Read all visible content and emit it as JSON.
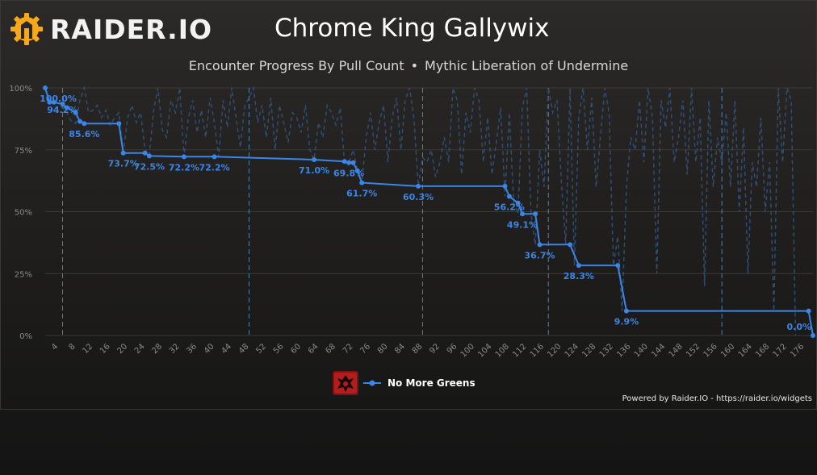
{
  "brand": {
    "name": "RAIDER.IO",
    "icon": "raiderio-gear-icon"
  },
  "header": {
    "title": "Chrome King Gallywix",
    "subtitle_left": "Encounter Progress By Pull Count",
    "subtitle_sep": "•",
    "subtitle_right": "Mythic Liberation of Undermine"
  },
  "legend": {
    "icon": "horde-guild-icon",
    "label": "No More Greens"
  },
  "footer": {
    "powered": "Powered by Raider.IO - https://raider.io/widgets"
  },
  "colors": {
    "best": "#3a86e8",
    "pull": "#2f4d73",
    "grid": "#3d3a36",
    "marker": "#5b9bd5"
  },
  "chart_data": {
    "type": "line",
    "xlabel": "",
    "ylabel": "",
    "xlim": [
      1,
      178
    ],
    "ylim": [
      0,
      100
    ],
    "y_ticks": [
      "0%",
      "25%",
      "50%",
      "75%",
      "100%"
    ],
    "x_ticks": [
      4,
      8,
      12,
      16,
      20,
      24,
      28,
      32,
      36,
      40,
      44,
      48,
      52,
      56,
      60,
      64,
      68,
      72,
      76,
      80,
      84,
      88,
      92,
      96,
      100,
      104,
      108,
      112,
      116,
      120,
      124,
      128,
      132,
      136,
      140,
      144,
      148,
      152,
      156,
      160,
      164,
      168,
      172,
      176
    ],
    "markers": [
      5,
      48,
      88,
      117,
      157
    ],
    "series": [
      {
        "name": "No More Greens",
        "kind": "best_progress",
        "points": [
          {
            "x": 1,
            "y": 100.0,
            "label": "100.0%"
          },
          {
            "x": 2,
            "y": 94.2,
            "label": "94.2%"
          },
          {
            "x": 3,
            "y": 94.2
          },
          {
            "x": 5,
            "y": 93.5
          },
          {
            "x": 6,
            "y": 92.0
          },
          {
            "x": 8,
            "y": 90.0
          },
          {
            "x": 9,
            "y": 86.5
          },
          {
            "x": 10,
            "y": 85.6,
            "label": "85.6%"
          },
          {
            "x": 18,
            "y": 85.6
          },
          {
            "x": 19,
            "y": 73.7,
            "label": "73.7%"
          },
          {
            "x": 24,
            "y": 73.7
          },
          {
            "x": 25,
            "y": 72.5,
            "label": "72.5%"
          },
          {
            "x": 33,
            "y": 72.2,
            "label": "72.2%"
          },
          {
            "x": 40,
            "y": 72.2,
            "label": "72.2%"
          },
          {
            "x": 63,
            "y": 71.0,
            "label": "71.0%"
          },
          {
            "x": 70,
            "y": 70.3
          },
          {
            "x": 71,
            "y": 69.8,
            "label": "69.8%"
          },
          {
            "x": 72,
            "y": 69.8
          },
          {
            "x": 73,
            "y": 66.5
          },
          {
            "x": 74,
            "y": 61.7,
            "label": "61.7%"
          },
          {
            "x": 87,
            "y": 60.3,
            "label": "60.3%"
          },
          {
            "x": 107,
            "y": 60.3
          },
          {
            "x": 108,
            "y": 56.2,
            "label": "56.2%"
          },
          {
            "x": 110,
            "y": 53.5
          },
          {
            "x": 111,
            "y": 49.1,
            "label": "49.1%"
          },
          {
            "x": 114,
            "y": 49.1
          },
          {
            "x": 115,
            "y": 36.7,
            "label": "36.7%"
          },
          {
            "x": 122,
            "y": 36.7
          },
          {
            "x": 124,
            "y": 28.3,
            "label": "28.3%"
          },
          {
            "x": 133,
            "y": 28.3
          },
          {
            "x": 135,
            "y": 9.9,
            "label": "9.9%"
          },
          {
            "x": 177,
            "y": 9.9
          },
          {
            "x": 178,
            "y": 0.0,
            "label": "0.0%"
          }
        ]
      },
      {
        "kind": "pull_progress",
        "y": [
          100,
          94.2,
          95,
          93.5,
          92,
          90,
          86.5,
          85.6,
          95,
          100,
          90,
          91,
          93,
          88,
          91,
          85,
          88,
          90,
          73.7,
          88,
          93,
          86,
          90,
          75,
          72.5,
          91,
          100,
          83,
          80,
          95,
          90,
          100,
          72.2,
          88,
          95,
          82,
          91,
          80,
          96,
          86,
          72.2,
          95,
          84,
          100,
          88,
          76,
          93,
          96,
          100,
          86,
          93,
          80,
          96,
          75,
          93,
          86,
          78,
          90,
          88,
          82,
          93,
          75,
          71,
          86,
          80,
          93,
          90,
          85,
          92,
          70.3,
          69.8,
          75,
          66.5,
          61.7,
          80,
          90,
          75,
          86,
          93,
          70,
          88,
          96,
          75,
          95,
          100,
          88,
          60.3,
          72,
          70,
          75,
          64,
          70,
          80,
          70,
          100,
          95,
          65,
          90,
          82,
          100,
          95,
          70,
          88,
          65,
          78,
          92,
          56.2,
          90,
          53.5,
          49.1,
          92,
          100,
          49.1,
          36.7,
          75,
          60,
          100,
          90,
          95,
          62,
          36.7,
          100,
          28.3,
          88,
          100,
          75,
          96,
          60,
          80,
          100,
          90,
          28.3,
          40,
          9.9,
          60,
          80,
          75,
          95,
          70,
          100,
          88,
          25,
          95,
          84,
          100,
          70,
          80,
          95,
          65,
          100,
          70,
          88,
          20,
          95,
          60,
          80,
          70,
          90,
          60,
          95,
          50,
          84,
          25,
          70,
          60,
          88,
          50,
          70,
          10,
          100,
          70,
          100,
          95,
          0
        ]
      }
    ]
  }
}
